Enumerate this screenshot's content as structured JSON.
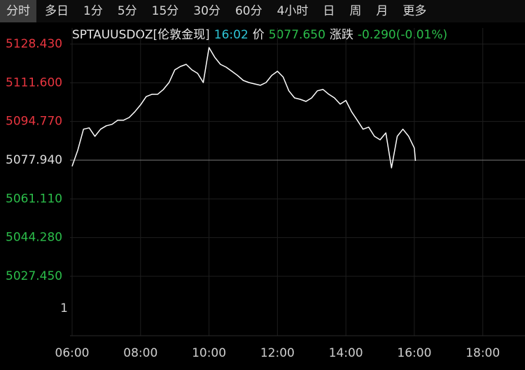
{
  "tabs": [
    "分时",
    "多日",
    "1分",
    "5分",
    "15分",
    "30分",
    "60分",
    "4小时",
    "日",
    "周",
    "月",
    "更多"
  ],
  "selected_tab": 0,
  "quote": {
    "symbol": "SPTAUUSDOZ[伦敦金现]",
    "time": "16:02",
    "price_label": "价",
    "price": "5077.650",
    "change_label": "涨跌",
    "change": "-0.290(-0.01%)"
  },
  "chart_data": {
    "type": "line",
    "x": [
      "06:00",
      "06:10",
      "06:20",
      "06:30",
      "06:40",
      "06:50",
      "07:00",
      "07:10",
      "07:20",
      "07:30",
      "07:40",
      "07:50",
      "08:00",
      "08:10",
      "08:20",
      "08:30",
      "08:40",
      "08:50",
      "09:00",
      "09:10",
      "09:20",
      "09:30",
      "09:40",
      "09:50",
      "10:00",
      "10:10",
      "10:20",
      "10:30",
      "10:40",
      "10:50",
      "11:00",
      "11:10",
      "11:20",
      "11:30",
      "11:40",
      "11:50",
      "12:00",
      "12:10",
      "12:20",
      "12:30",
      "12:40",
      "12:50",
      "13:00",
      "13:10",
      "13:20",
      "13:30",
      "13:40",
      "13:50",
      "14:00",
      "14:10",
      "14:20",
      "14:30",
      "14:40",
      "14:50",
      "15:00",
      "15:10",
      "15:20",
      "15:30",
      "15:40",
      "15:50",
      "16:00",
      "16:02"
    ],
    "series": [
      {
        "color": "#ffffff",
        "values": [
          5075.3,
          5082.3,
          5091.4,
          5092.0,
          5088.3,
          5091.4,
          5092.9,
          5093.5,
          5095.3,
          5095.3,
          5096.5,
          5099.0,
          5102.0,
          5105.6,
          5106.6,
          5106.6,
          5108.7,
          5111.7,
          5117.2,
          5118.7,
          5119.6,
          5117.2,
          5115.7,
          5111.7,
          5126.9,
          5122.7,
          5119.6,
          5118.4,
          5116.6,
          5114.8,
          5112.6,
          5111.7,
          5111.1,
          5110.5,
          5111.7,
          5114.8,
          5116.6,
          5114.1,
          5108.1,
          5105.0,
          5104.4,
          5103.5,
          5105.0,
          5108.1,
          5108.7,
          5106.6,
          5105.0,
          5102.3,
          5103.9,
          5099.0,
          5095.3,
          5091.4,
          5092.3,
          5088.3,
          5086.8,
          5089.8,
          5074.6,
          5088.3,
          5091.4,
          5088.3,
          5083.2,
          5077.65
        ]
      }
    ],
    "xlim": [
      "06:00",
      "19:14"
    ],
    "xticks": [
      "06:00",
      "08:00",
      "10:00",
      "12:00",
      "14:00",
      "16:00",
      "18:00"
    ],
    "ylim": [
      5027.45,
      5128.43
    ],
    "yticks": [
      {
        "value": 5128.43,
        "label": "5128.430"
      },
      {
        "value": 5111.6,
        "label": "5111.600"
      },
      {
        "value": 5094.77,
        "label": "5094.770"
      },
      {
        "value": 5077.94,
        "label": "5077.940"
      },
      {
        "value": 5061.11,
        "label": "5061.110"
      },
      {
        "value": 5044.28,
        "label": "5044.280"
      },
      {
        "value": 5027.45,
        "label": "5027.450"
      }
    ],
    "prev_close": 5077.94,
    "volume_ticks": [
      1
    ],
    "grid": true,
    "colors": {
      "up": "#e8353f",
      "down": "#2bbd4a",
      "flat": "#dddddd",
      "grid": "#1e1e1e",
      "prev_close": "#7a7a7a"
    }
  }
}
